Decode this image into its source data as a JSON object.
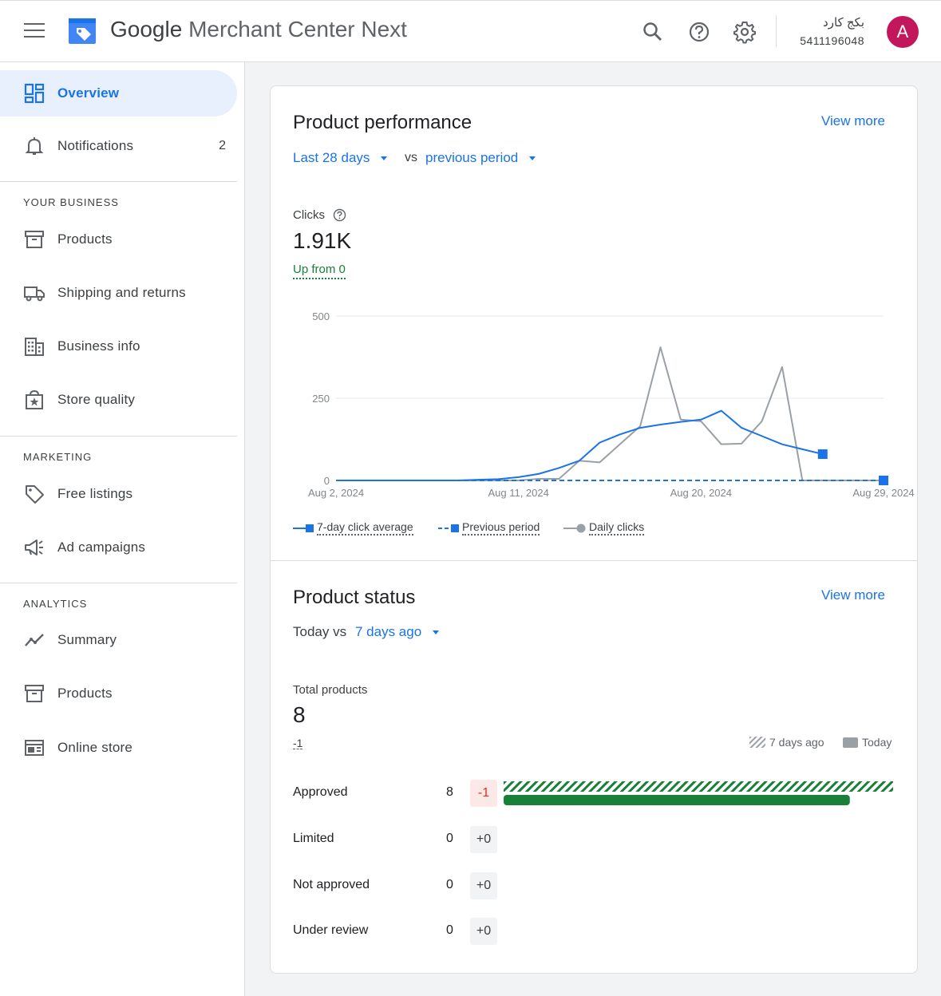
{
  "header": {
    "title_google": "Google",
    "title_rest": " Merchant Center Next",
    "account_name": "بكج كارد",
    "account_id": "5411196048",
    "avatar_letter": "A",
    "icons": [
      "menu-icon",
      "search-icon",
      "help-icon",
      "settings-icon"
    ]
  },
  "sidebar": {
    "top_items": [
      {
        "label": "Overview",
        "icon": "dashboard-icon",
        "active": true
      },
      {
        "label": "Notifications",
        "icon": "bell-icon",
        "count": "2"
      }
    ],
    "your_business": {
      "heading": "YOUR BUSINESS",
      "items": [
        {
          "label": "Products",
          "icon": "archive-icon"
        },
        {
          "label": "Shipping and returns",
          "icon": "truck-icon"
        },
        {
          "label": "Business info",
          "icon": "building-icon"
        },
        {
          "label": "Store quality",
          "icon": "store-badge-icon"
        }
      ]
    },
    "marketing": {
      "heading": "MARKETING",
      "items": [
        {
          "label": "Free listings",
          "icon": "tag-icon"
        },
        {
          "label": "Ad campaigns",
          "icon": "megaphone-icon"
        }
      ]
    },
    "analytics": {
      "heading": "ANALYTICS",
      "items": [
        {
          "label": "Summary",
          "icon": "trend-icon"
        },
        {
          "label": "Products",
          "icon": "archive-icon"
        },
        {
          "label": "Online store",
          "icon": "web-icon"
        }
      ]
    }
  },
  "performance": {
    "title": "Product performance",
    "view_more": "View more",
    "range": "Last 28 days",
    "vs": "vs",
    "compare": "previous period",
    "metric_label": "Clicks",
    "metric_value": "1.91K",
    "change_text": "Up from 0",
    "legend": [
      "7-day click average",
      "Previous period",
      "Daily clicks"
    ]
  },
  "chart_data": {
    "type": "line",
    "x_ticks": [
      "Aug 2, 2024",
      "Aug 11, 2024",
      "Aug 20, 2024",
      "Aug 29, 2024"
    ],
    "y_ticks": [
      0,
      250,
      500
    ],
    "ylim": [
      0,
      500
    ],
    "grid": true,
    "legend_position": "bottom",
    "x_days": [
      2,
      3,
      4,
      5,
      6,
      7,
      8,
      9,
      10,
      11,
      12,
      13,
      14,
      15,
      16,
      17,
      18,
      19,
      20,
      21,
      22,
      23,
      24,
      25,
      26,
      27,
      28,
      29
    ],
    "series": [
      {
        "name": "7-day click average",
        "color": "#1a73e8",
        "style": "solid",
        "values": [
          0,
          0,
          0,
          0,
          0,
          0,
          0,
          2,
          4,
          10,
          20,
          38,
          60,
          115,
          140,
          160,
          170,
          178,
          185,
          212,
          160,
          135,
          110,
          95,
          80,
          null,
          null,
          null
        ]
      },
      {
        "name": "Previous period",
        "color": "#1a73e8",
        "style": "dashed",
        "values": [
          0,
          0,
          0,
          0,
          0,
          0,
          0,
          0,
          0,
          0,
          0,
          0,
          0,
          0,
          0,
          0,
          0,
          0,
          0,
          0,
          0,
          0,
          0,
          0,
          0,
          0,
          0,
          0
        ]
      },
      {
        "name": "Daily clicks",
        "color": "#9aa0a6",
        "style": "solid",
        "values": [
          0,
          0,
          0,
          0,
          0,
          0,
          0,
          0,
          0,
          0,
          5,
          5,
          60,
          55,
          110,
          165,
          405,
          185,
          180,
          110,
          112,
          180,
          345,
          0,
          0,
          0,
          0,
          0
        ]
      }
    ]
  },
  "status": {
    "title": "Product status",
    "view_more": "View more",
    "today_vs": "Today vs",
    "compare": "7 days ago",
    "total_label": "Total products",
    "total_value": "8",
    "total_change": "-1",
    "key_prev": "7 days ago",
    "key_today": "Today",
    "max_value": 9,
    "rows": [
      {
        "label": "Approved",
        "value": "8",
        "change": "-1",
        "prev": 9,
        "today": 8
      },
      {
        "label": "Limited",
        "value": "0",
        "change": "+0",
        "prev": 0,
        "today": 0
      },
      {
        "label": "Not approved",
        "value": "0",
        "change": "+0",
        "prev": 0,
        "today": 0
      },
      {
        "label": "Under review",
        "value": "0",
        "change": "+0",
        "prev": 0,
        "today": 0
      }
    ],
    "bar_color": "#188038"
  }
}
